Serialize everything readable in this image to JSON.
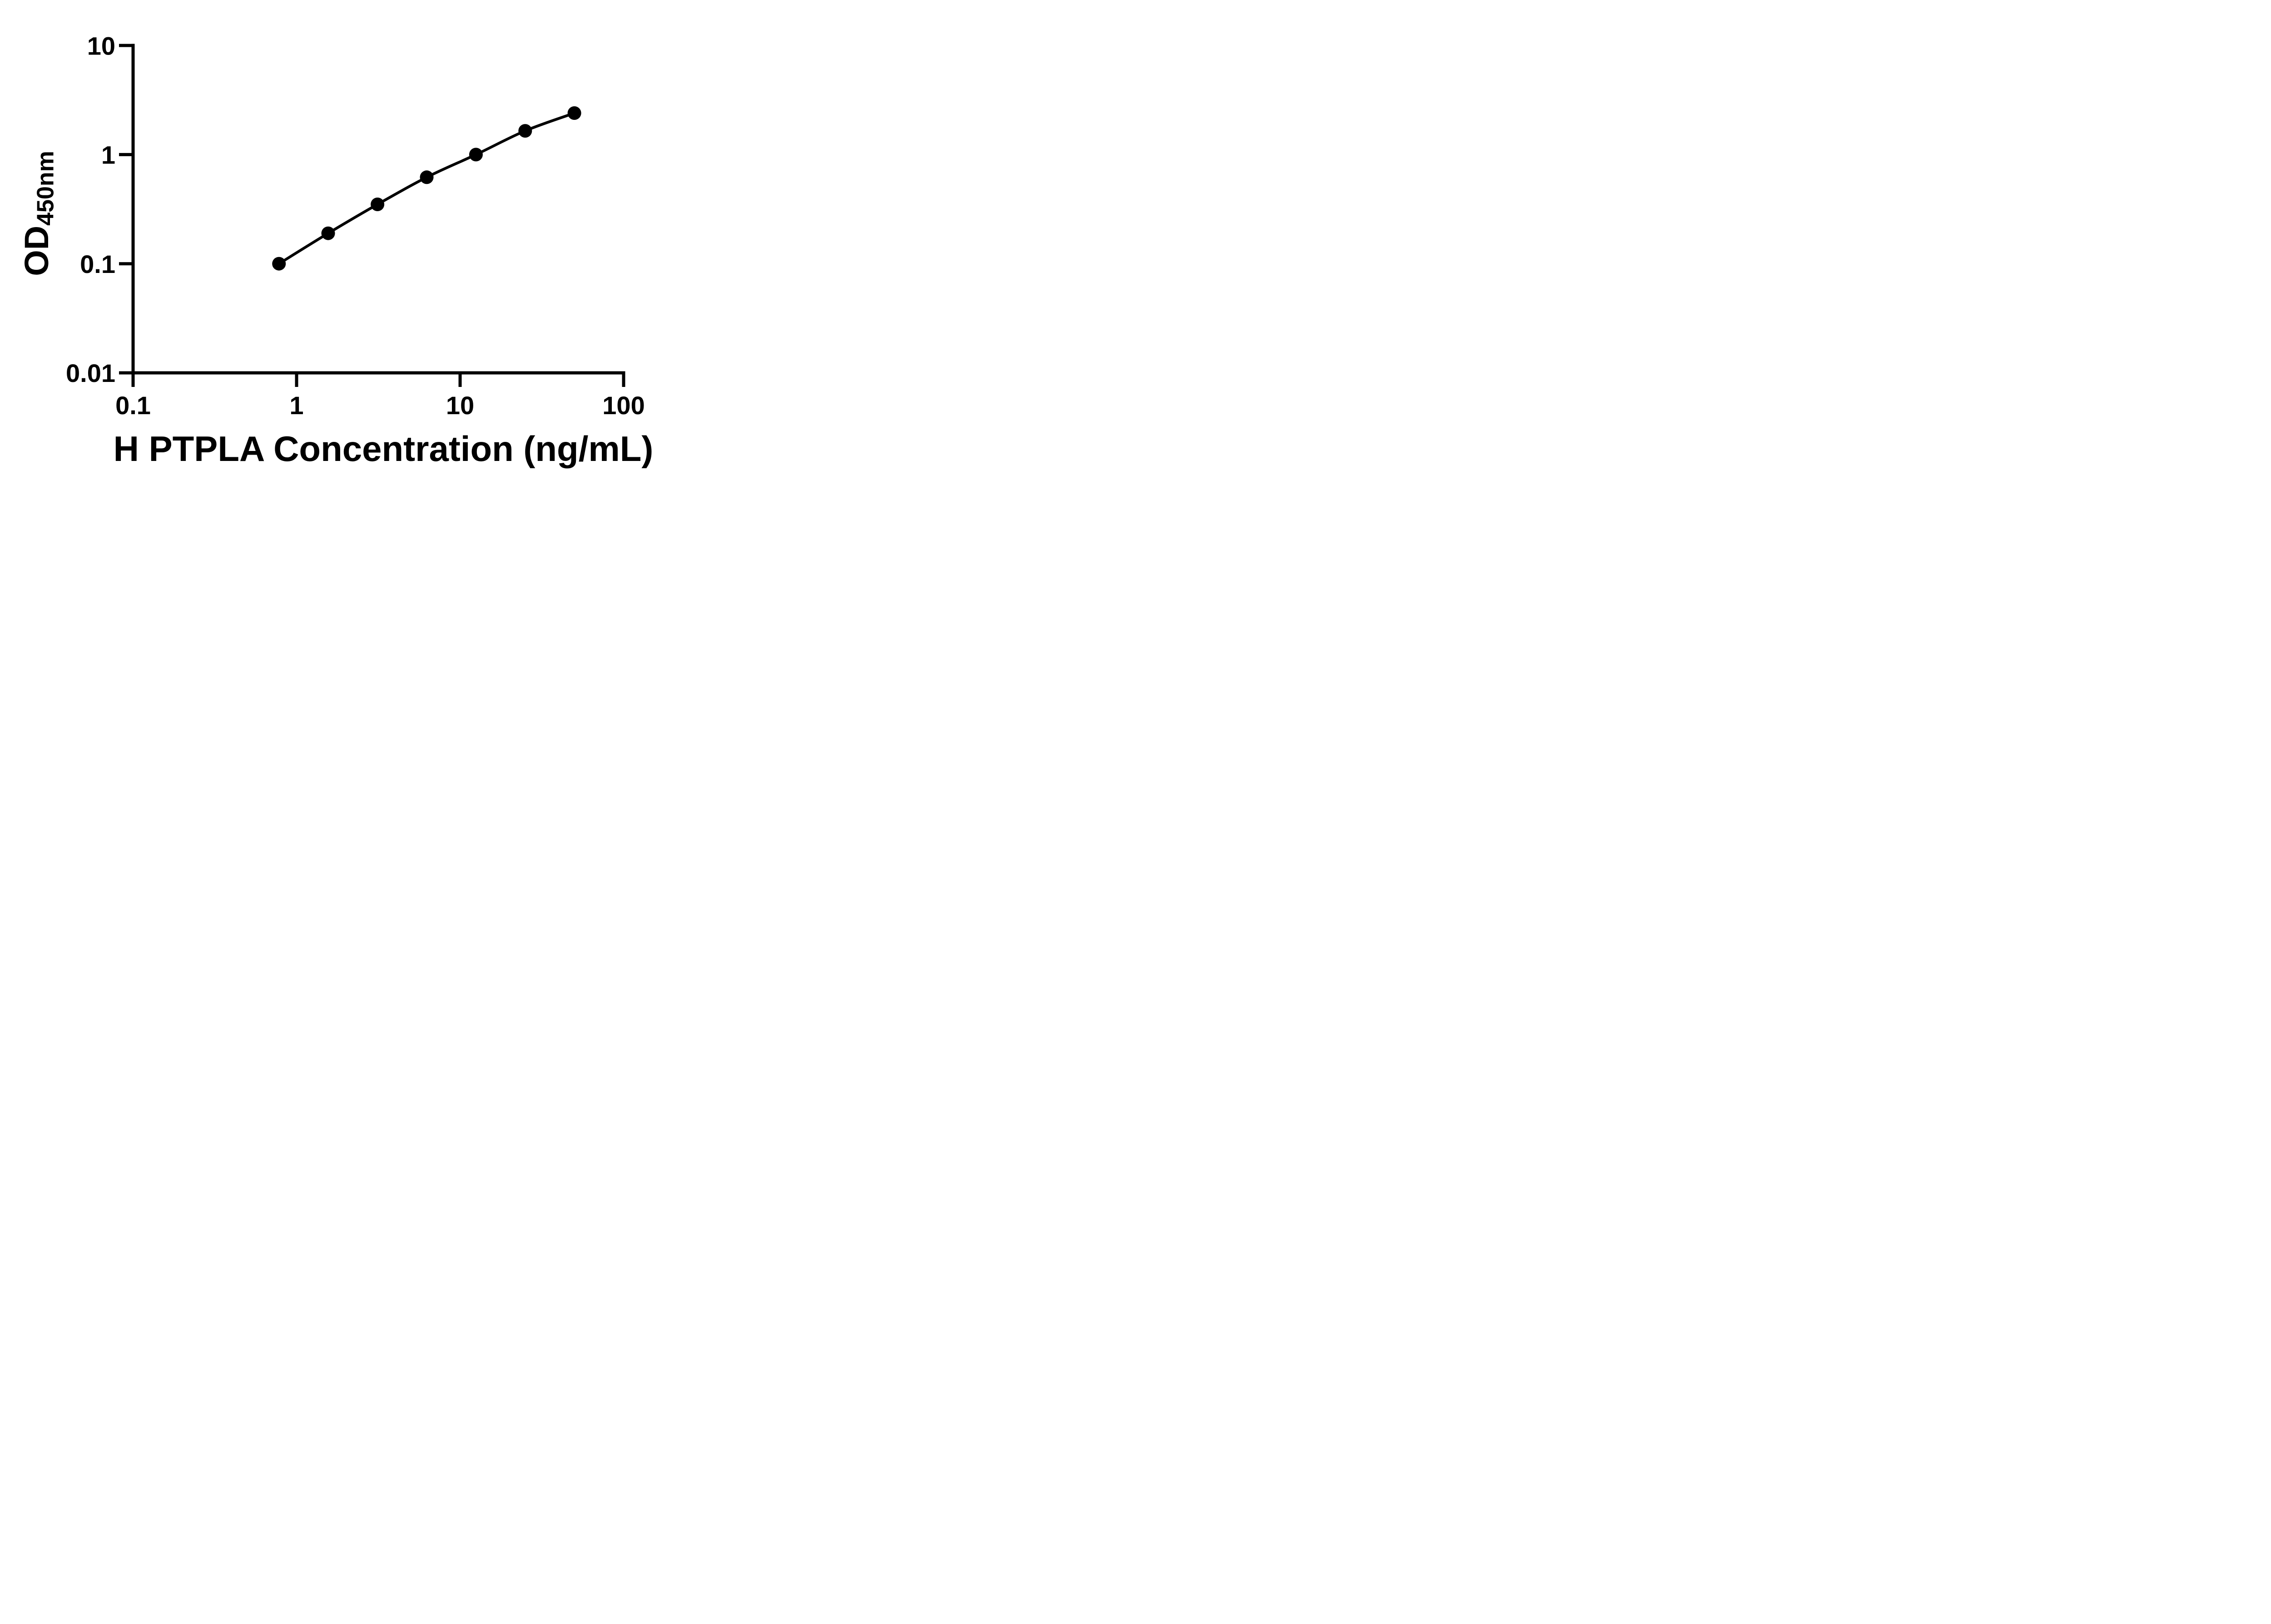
{
  "figure": {
    "background_color": "#ffffff",
    "ink_color": "#000000"
  },
  "chart_data": {
    "type": "scatter",
    "title": "",
    "xlabel": "H PTPLA Concentration (ng/mL)",
    "ylabel": "OD450nm",
    "ylabel_main": "OD",
    "ylabel_sub": "450nm",
    "x_scale": "log",
    "y_scale": "log",
    "xlim": [
      0.1,
      100
    ],
    "ylim": [
      0.01,
      10
    ],
    "grid": false,
    "legend": "none",
    "marker": {
      "shape": "filled-circle",
      "color": "#000000"
    },
    "line": {
      "style": "smooth",
      "color": "#000000"
    },
    "x_tick_values": [
      0.1,
      1,
      10,
      100
    ],
    "x_tick_labels": [
      "0.1",
      "1",
      "10",
      "100"
    ],
    "y_tick_values": [
      10,
      1,
      0.1,
      0.01
    ],
    "y_tick_labels": [
      "10",
      "1",
      "0.1",
      "0.01"
    ],
    "series": [
      {
        "x": [
          0.78,
          1.56,
          3.125,
          6.25,
          12.5,
          25,
          50
        ],
        "y": [
          0.1,
          0.19,
          0.35,
          0.62,
          1.0,
          1.65,
          2.4
        ]
      }
    ]
  }
}
